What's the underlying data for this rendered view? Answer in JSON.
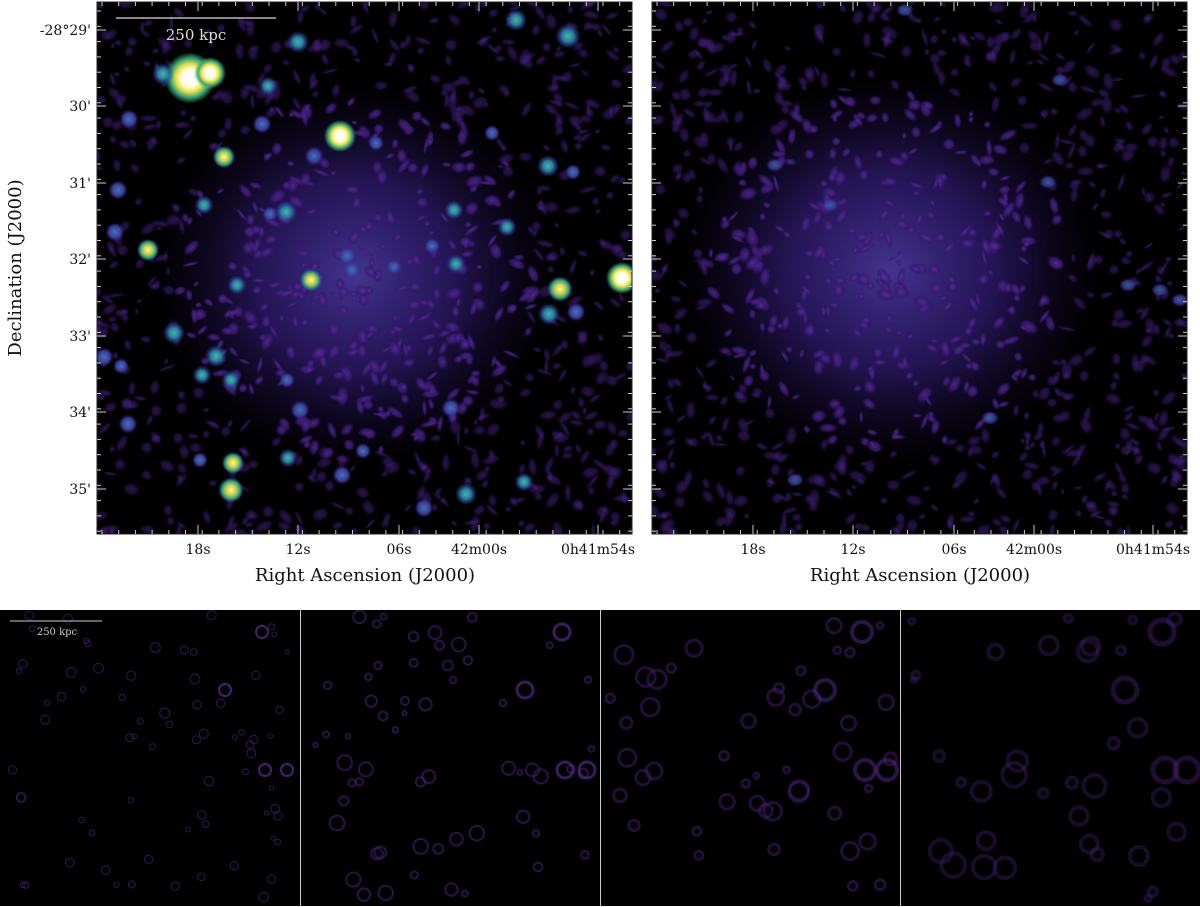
{
  "top_panels": [
    {
      "scale_bar": "250 kpc",
      "y_axis_label": "Declination (J2000)",
      "y_ticks": [
        "-28°29'",
        "30'",
        "31'",
        "32'",
        "33'",
        "34'",
        "35'"
      ],
      "x_axis_label": "Right Ascension (J2000)",
      "x_ticks": [
        "18s",
        "12s",
        "06s",
        "42m00s",
        "0h41m54s"
      ]
    },
    {
      "x_axis_label": "Right Ascension (J2000)",
      "x_ticks": [
        "18s",
        "12s",
        "06s",
        "42m00s",
        "0h41m54s"
      ]
    }
  ],
  "bottom_panels": {
    "scale_bar": "250 kpc"
  }
}
